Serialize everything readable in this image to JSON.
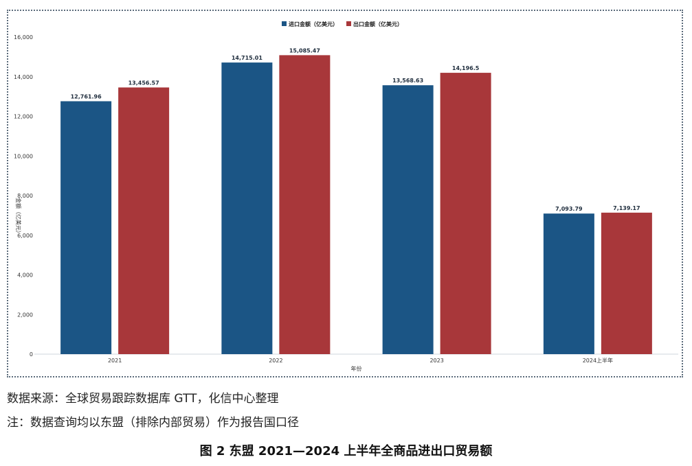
{
  "chart_data": {
    "type": "bar",
    "categories": [
      "2021",
      "2022",
      "2023",
      "2024上半年"
    ],
    "series": [
      {
        "name": "进口金额（亿美元）",
        "values": [
          12761.96,
          14715.01,
          13568.63,
          7093.79
        ],
        "labels": [
          "12,761.96",
          "14,715.01",
          "13,568.63",
          "7,093.79"
        ],
        "color": "#1b5585"
      },
      {
        "name": "出口金额（亿美元）",
        "values": [
          13456.57,
          15085.47,
          14196.5,
          7139.17
        ],
        "labels": [
          "13,456.57",
          "15,085.47",
          "14,196.5",
          "7,139.17"
        ],
        "color": "#a8373a"
      }
    ],
    "yticks": [
      "0",
      "2,000",
      "4,000",
      "6,000",
      "8,000",
      "10,000",
      "12,000",
      "14,000",
      "16,000"
    ],
    "ylim": [
      0,
      16000
    ],
    "xlabel": "年份",
    "ylabel": "金额（亿美元）",
    "grid": false,
    "legend": "top-center"
  },
  "source_text": "数据来源：全球贸易跟踪数据库 GTT，化信中心整理",
  "note_text": "注：数据查询均以东盟（排除内部贸易）作为报告国口径",
  "figure_title": "图 2 东盟 2021—2024 上半年全商品进出口贸易额"
}
